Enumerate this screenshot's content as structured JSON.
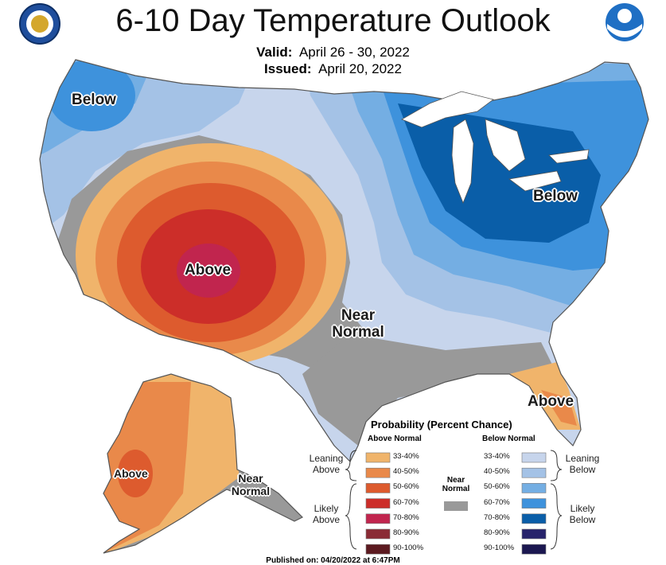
{
  "title": "6-10 Day Temperature Outlook",
  "valid_label": "Valid:",
  "valid_value": "April 26 - 30, 2022",
  "issued_label": "Issued:",
  "issued_value": "April 20, 2022",
  "logos": {
    "left": "department-of-commerce-seal",
    "right": "noaa-logo"
  },
  "map_labels": {
    "northwest_below": "Below",
    "great_lakes_below": "Below",
    "southwest_above": "Above",
    "plains_near_normal": "Near Normal",
    "florida_above": "Above",
    "alaska_above": "Above",
    "alaska_near_normal": "Near Normal"
  },
  "legend": {
    "title": "Probability (Percent Chance)",
    "above_header": "Above Normal",
    "below_header": "Below Normal",
    "near_header": "Near Normal",
    "leaning_above": "Leaning Above",
    "likely_above": "Likely Above",
    "leaning_below": "Leaning Below",
    "likely_below": "Likely Below",
    "above_bins": [
      {
        "label": "33-40%",
        "color": "#f0b46b"
      },
      {
        "label": "40-50%",
        "color": "#e9894a"
      },
      {
        "label": "50-60%",
        "color": "#dd5b2e"
      },
      {
        "label": "60-70%",
        "color": "#cc2e29"
      },
      {
        "label": "70-80%",
        "color": "#c1254e"
      },
      {
        "label": "80-90%",
        "color": "#8a2b35"
      },
      {
        "label": "90-100%",
        "color": "#5c1a20"
      }
    ],
    "below_bins": [
      {
        "label": "33-40%",
        "color": "#c7d5ec"
      },
      {
        "label": "40-50%",
        "color": "#a4c2e6"
      },
      {
        "label": "50-60%",
        "color": "#74aee3"
      },
      {
        "label": "60-70%",
        "color": "#3e92dc"
      },
      {
        "label": "70-80%",
        "color": "#0a5ea8"
      },
      {
        "label": "80-90%",
        "color": "#27236b"
      },
      {
        "label": "90-100%",
        "color": "#1b1750"
      }
    ],
    "near_color": "#999999"
  },
  "footer": "Published on: 04/20/2022 at 6:47PM"
}
